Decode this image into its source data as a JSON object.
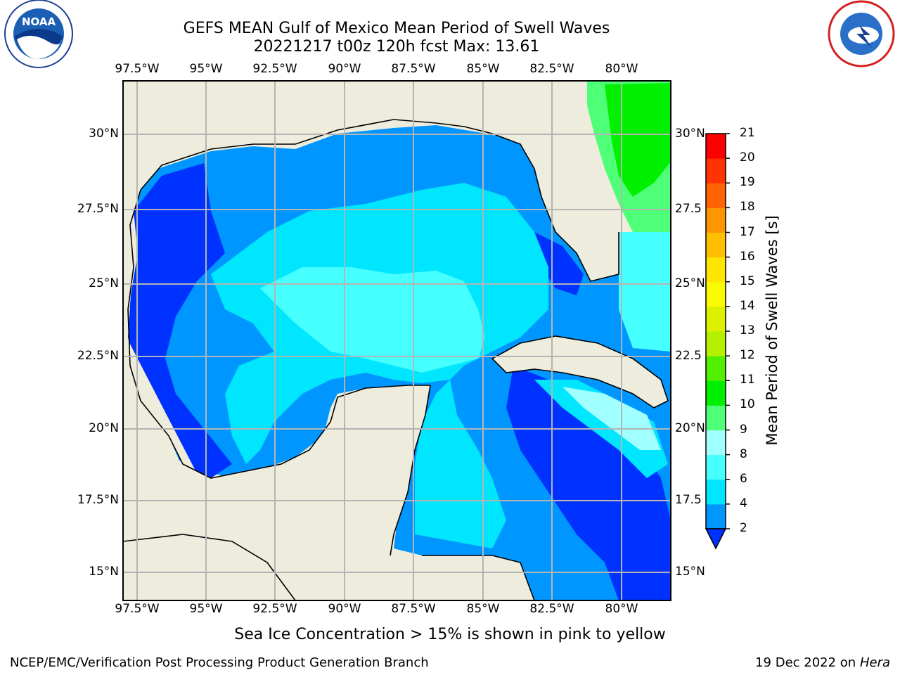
{
  "header": {
    "title": "GEFS MEAN Gulf of Mexico Mean Period of Swell Waves",
    "subtitle": "20221217 t00z 120h fcst   Max: 13.61"
  },
  "logos": {
    "left": "NOAA",
    "right": "NATIONAL WEATHER SERVICE"
  },
  "map": {
    "lon_ticks": [
      "97.5°W",
      "95°W",
      "92.5°W",
      "90°W",
      "87.5°W",
      "85°W",
      "82.5°W",
      "80°W"
    ],
    "lat_ticks_left": [
      "30°N",
      "27.5°N",
      "25°N",
      "22.5°N",
      "20°N",
      "17.5°N",
      "15°N"
    ],
    "lat_ticks_right": [
      "30°N",
      "27.5",
      "25°N",
      "22.5",
      "20°N",
      "17.5",
      "15°N"
    ],
    "land_color": "#eeecdc",
    "grid_color": "#b4b4b4"
  },
  "colorbar": {
    "label": "Mean Period of Swell Waves [s]",
    "ticks": [
      "2",
      "4",
      "6",
      "8",
      "9",
      "10",
      "11",
      "12",
      "13",
      "14",
      "15",
      "16",
      "17",
      "18",
      "19",
      "20",
      "21"
    ],
    "colors": [
      "#0032ff",
      "#0096ff",
      "#00e6ff",
      "#46ffff",
      "#a0ffff",
      "#50ff78",
      "#00f000",
      "#50f000",
      "#b4f000",
      "#dcf000",
      "#fafa00",
      "#ffe600",
      "#ffbe00",
      "#ff9600",
      "#ff6400",
      "#ff3200",
      "#ff0000"
    ],
    "extend": "min"
  },
  "footer": {
    "note": "Sea Ice Concentration > 15% is shown in pink to yellow",
    "left": "NCEP/EMC/Verification Post Processing Product Generation Branch",
    "right_date": "19 Dec 2022 on",
    "right_machine": "Hera"
  }
}
